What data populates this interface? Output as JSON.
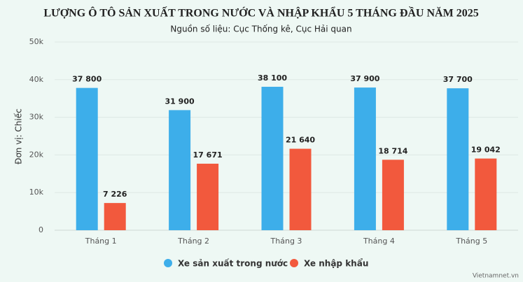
{
  "chart_data": {
    "type": "bar",
    "title": "LƯỢNG Ô TÔ SẢN XUẤT TRONG NƯỚC VÀ NHẬP KHẨU 5 THÁNG ĐẦU NĂM 2025",
    "subtitle": "Nguồn số liệu: Cục Thống kê, Cục Hải quan",
    "y_label": "Đơn vị: Chiếc",
    "credit": "Vietnamnet.vn",
    "categories": [
      "Tháng 1",
      "Tháng 2",
      "Tháng 3",
      "Tháng 4",
      "Tháng 5"
    ],
    "series": [
      {
        "name": "Xe sản xuất trong nước",
        "color": "#3daeea",
        "values": [
          37800,
          31900,
          38100,
          37900,
          37700
        ],
        "value_labels": [
          "37 800",
          "31 900",
          "38 100",
          "37 900",
          "37 700"
        ]
      },
      {
        "name": "Xe nhập khẩu",
        "color": "#f2593d",
        "values": [
          7226,
          17671,
          21640,
          18714,
          19042
        ],
        "value_labels": [
          "7 226",
          "17 671",
          "21 640",
          "18 714",
          "19 042"
        ]
      }
    ],
    "ylim": [
      0,
      50000
    ],
    "yticks": [
      0,
      {
        "value": 10000,
        "label": "10k"
      },
      {
        "value": 20000,
        "label": "20k"
      },
      {
        "value": 30000,
        "label": "30k"
      },
      {
        "value": 40000,
        "label": "40k"
      },
      {
        "value": 50000,
        "label": "50k"
      }
    ],
    "grid": true,
    "legend": "bottom"
  }
}
